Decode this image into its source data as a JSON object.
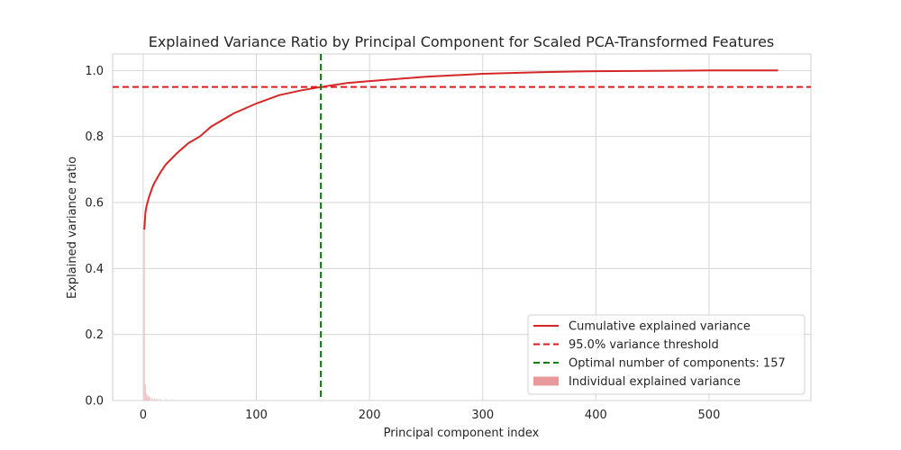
{
  "chart_data": {
    "type": "line",
    "title": "Explained Variance Ratio by Principal Component for Scaled PCA-Transformed Features",
    "xlabel": "Principal component index",
    "ylabel": "Explained variance ratio",
    "xlim": [
      -27,
      590
    ],
    "ylim": [
      0,
      1.05
    ],
    "xticks": [
      0,
      100,
      200,
      300,
      400,
      500
    ],
    "yticks": [
      0.0,
      0.2,
      0.4,
      0.6,
      0.8,
      1.0
    ],
    "xtick_labels": [
      "0",
      "100",
      "200",
      "300",
      "400",
      "500"
    ],
    "ytick_labels": [
      "0.0",
      "0.2",
      "0.4",
      "0.6",
      "0.8",
      "1.0"
    ],
    "grid": true,
    "legend_position": "lower-right",
    "series": [
      {
        "name": "Cumulative explained variance",
        "kind": "line",
        "color": "#d62728",
        "x": [
          1,
          2,
          3,
          5,
          8,
          10,
          15,
          20,
          30,
          40,
          50,
          60,
          80,
          100,
          120,
          140,
          157,
          180,
          200,
          250,
          300,
          350,
          400,
          450,
          500,
          561
        ],
        "y": [
          0.518,
          0.57,
          0.59,
          0.615,
          0.645,
          0.66,
          0.69,
          0.715,
          0.75,
          0.78,
          0.8,
          0.83,
          0.87,
          0.9,
          0.925,
          0.94,
          0.95,
          0.962,
          0.968,
          0.981,
          0.99,
          0.995,
          0.998,
          0.999,
          1.0,
          1.0
        ]
      },
      {
        "name": "Individual explained variance",
        "kind": "bar",
        "color": "#e8999a",
        "x": [
          1,
          2,
          3,
          4,
          5,
          6,
          8,
          10,
          12,
          15,
          20,
          25
        ],
        "y": [
          0.518,
          0.05,
          0.02,
          0.015,
          0.012,
          0.01,
          0.008,
          0.006,
          0.005,
          0.004,
          0.003,
          0.002
        ]
      }
    ],
    "reference_lines": [
      {
        "name": "95.0% variance threshold",
        "orientation": "horizontal",
        "value": 0.95,
        "color": "#e31a1c",
        "style": "dashed"
      },
      {
        "name": "Optimal number of components: 157",
        "orientation": "vertical",
        "value": 157,
        "color": "#008000",
        "style": "dashed"
      }
    ]
  }
}
